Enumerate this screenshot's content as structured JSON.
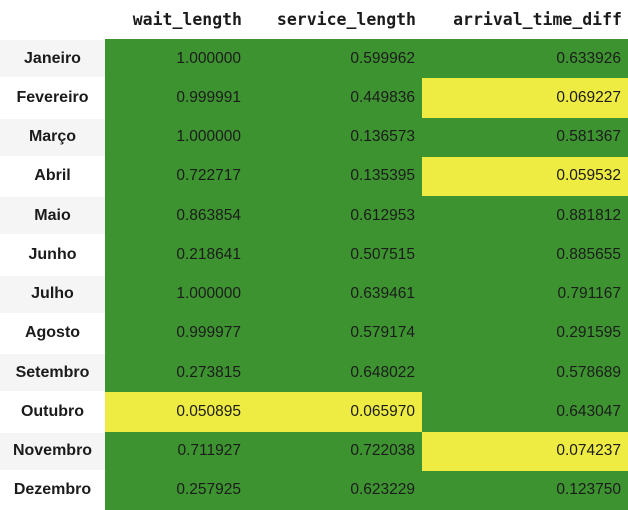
{
  "table": {
    "columns": [
      "wait_length",
      "service_length",
      "arrival_time_diff"
    ],
    "rows": [
      {
        "label": "Janeiro",
        "values": [
          "1.000000",
          "0.599962",
          "0.633926"
        ],
        "highlight": [
          false,
          false,
          false
        ]
      },
      {
        "label": "Fevereiro",
        "values": [
          "0.999991",
          "0.449836",
          "0.069227"
        ],
        "highlight": [
          false,
          false,
          true
        ]
      },
      {
        "label": "Março",
        "values": [
          "1.000000",
          "0.136573",
          "0.581367"
        ],
        "highlight": [
          false,
          false,
          false
        ]
      },
      {
        "label": "Abril",
        "values": [
          "0.722717",
          "0.135395",
          "0.059532"
        ],
        "highlight": [
          false,
          false,
          true
        ]
      },
      {
        "label": "Maio",
        "values": [
          "0.863854",
          "0.612953",
          "0.881812"
        ],
        "highlight": [
          false,
          false,
          false
        ]
      },
      {
        "label": "Junho",
        "values": [
          "0.218641",
          "0.507515",
          "0.885655"
        ],
        "highlight": [
          false,
          false,
          false
        ]
      },
      {
        "label": "Julho",
        "values": [
          "1.000000",
          "0.639461",
          "0.791167"
        ],
        "highlight": [
          false,
          false,
          false
        ]
      },
      {
        "label": "Agosto",
        "values": [
          "0.999977",
          "0.579174",
          "0.291595"
        ],
        "highlight": [
          false,
          false,
          false
        ]
      },
      {
        "label": "Setembro",
        "values": [
          "0.273815",
          "0.648022",
          "0.578689"
        ],
        "highlight": [
          false,
          false,
          false
        ]
      },
      {
        "label": "Outubro",
        "values": [
          "0.050895",
          "0.065970",
          "0.643047"
        ],
        "highlight": [
          true,
          true,
          false
        ]
      },
      {
        "label": "Novembro",
        "values": [
          "0.711927",
          "0.722038",
          "0.074237"
        ],
        "highlight": [
          false,
          false,
          true
        ]
      },
      {
        "label": "Dezembro",
        "values": [
          "0.257925",
          "0.623229",
          "0.123750"
        ],
        "highlight": [
          false,
          false,
          false
        ]
      }
    ]
  },
  "colors": {
    "normal_cell": "#3d9330",
    "highlight_cell": "#eeeb43"
  }
}
